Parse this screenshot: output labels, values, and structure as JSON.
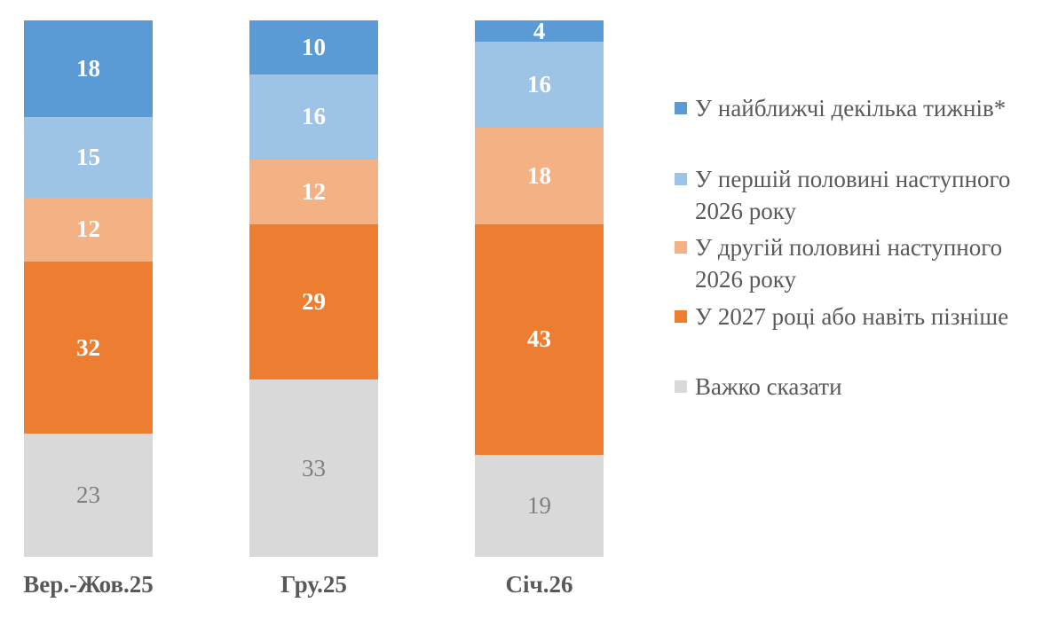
{
  "chart_data": {
    "type": "bar",
    "subtype": "stacked-column",
    "title": "",
    "xlabel": "",
    "ylabel": "",
    "ylim": [
      0,
      100
    ],
    "grid": false,
    "legend_position": "right",
    "values_are": "percent",
    "categories": [
      "Вер.-Жов.25",
      "Гру.25",
      "Січ.26"
    ],
    "series": [
      {
        "name": "У найближчі декілька тижнів*",
        "color": "#5B9BD5",
        "value_label_color": "#FFFFFF",
        "value_label_bold": true,
        "values": [
          18,
          10,
          4
        ]
      },
      {
        "name": "У першій половині наступного 2026 року",
        "color": "#9DC3E6",
        "value_label_color": "#FFFFFF",
        "value_label_bold": true,
        "values": [
          15,
          16,
          16
        ]
      },
      {
        "name": "У другій половині наступного 2026 року",
        "color": "#F4B183",
        "value_label_color": "#FFFFFF",
        "value_label_bold": true,
        "values": [
          12,
          12,
          18
        ]
      },
      {
        "name": "У 2027 році або навіть пізніше",
        "color": "#ED7D31",
        "value_label_color": "#FFFFFF",
        "value_label_bold": true,
        "values": [
          32,
          29,
          43
        ]
      },
      {
        "name": "Важко сказати",
        "color": "#D9D9D9",
        "value_label_color": "#7F7F7F",
        "value_label_bold": false,
        "values": [
          23,
          33,
          19
        ]
      }
    ]
  },
  "legend": {
    "text_color": "#595959",
    "items": [
      {
        "lines": [
          "У найближчі декілька тижнів*"
        ],
        "color": "#5B9BD5"
      },
      {
        "lines": [
          "У першій половині наступного",
          "2026 року"
        ],
        "color": "#9DC3E6"
      },
      {
        "lines": [
          "У другій половині наступного",
          "2026 року"
        ],
        "color": "#F4B183"
      },
      {
        "lines": [
          "У 2027 році або навіть пізніше"
        ],
        "color": "#ED7D31"
      },
      {
        "lines": [
          "Важко сказати"
        ],
        "color": "#D9D9D9"
      }
    ]
  },
  "x_axis": {
    "labels": [
      "Вер.-Жов.25",
      "Гру.25",
      "Січ.26"
    ],
    "label_color": "#595959"
  }
}
